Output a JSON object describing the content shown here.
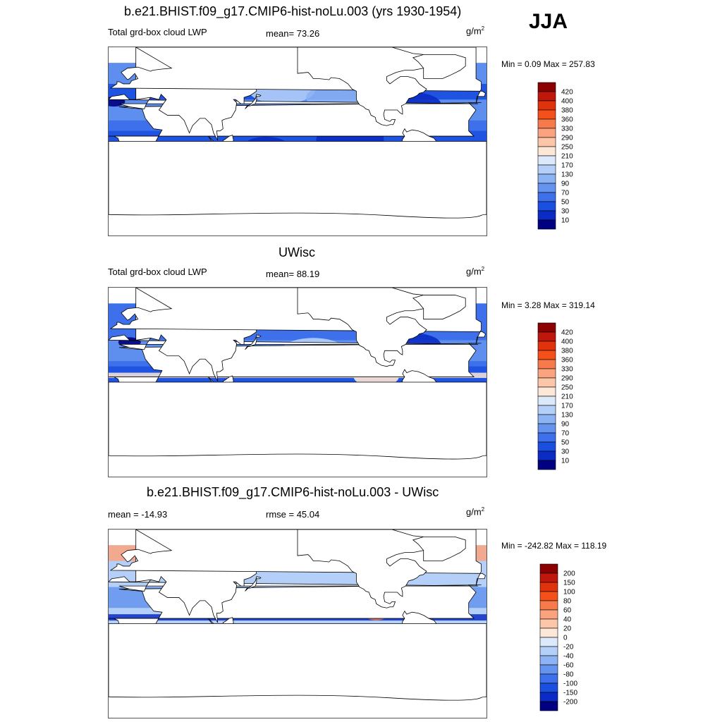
{
  "season": "JJA",
  "panels": [
    {
      "title": "b.e21.BHIST.f09_g17.CMIP6-hist-noLu.003 (yrs 1930-1954)",
      "left_label": "Total grd-box cloud LWP",
      "stat_label": "mean=  73.26",
      "units": "g/m",
      "units_sup": "2",
      "minmax": "Min =   0.09 Max = 257.83",
      "colorbar": "abs",
      "style": "model"
    },
    {
      "title": "UWisc",
      "left_label": "Total grd-box cloud LWP",
      "stat_label": "mean=  88.19",
      "units": "g/m",
      "units_sup": "2",
      "minmax": "Min =   3.28 Max = 319.14",
      "colorbar": "abs",
      "style": "obs"
    },
    {
      "title": "b.e21.BHIST.f09_g17.CMIP6-hist-noLu.003 - UWisc",
      "left_label": "mean = -14.93",
      "stat_label": "rmse =  45.04",
      "units": "g/m",
      "units_sup": "2",
      "minmax": "Min = -242.82 Max = 118.19",
      "colorbar": "diff",
      "style": "diff"
    }
  ],
  "colorbars": {
    "abs": {
      "labels": [
        "420",
        "400",
        "380",
        "360",
        "330",
        "290",
        "250",
        "210",
        "170",
        "130",
        "90",
        "70",
        "50",
        "30",
        "10"
      ],
      "colors": [
        "#8b0000",
        "#c0170c",
        "#e0320c",
        "#f5501a",
        "#f77a4c",
        "#fba37e",
        "#fcc7a8",
        "#fde7d6",
        "#dbe9fb",
        "#b4cff8",
        "#8cb3f4",
        "#6594ef",
        "#3d70ea",
        "#1a4fe0",
        "#0a2cc4",
        "#000080"
      ]
    },
    "diff": {
      "labels": [
        "200",
        "150",
        "100",
        "80",
        "60",
        "40",
        "20",
        "0",
        "-20",
        "-40",
        "-60",
        "-80",
        "-100",
        "-150",
        "-200"
      ],
      "colors": [
        "#8b0000",
        "#c0170c",
        "#e0320c",
        "#f5501a",
        "#f77a4c",
        "#fba37e",
        "#fcc7a8",
        "#fde7d6",
        "#dbe9fb",
        "#b4cff8",
        "#8cb3f4",
        "#6594ef",
        "#3d70ea",
        "#1a4fe0",
        "#0a2cc4",
        "#000080"
      ]
    }
  }
}
